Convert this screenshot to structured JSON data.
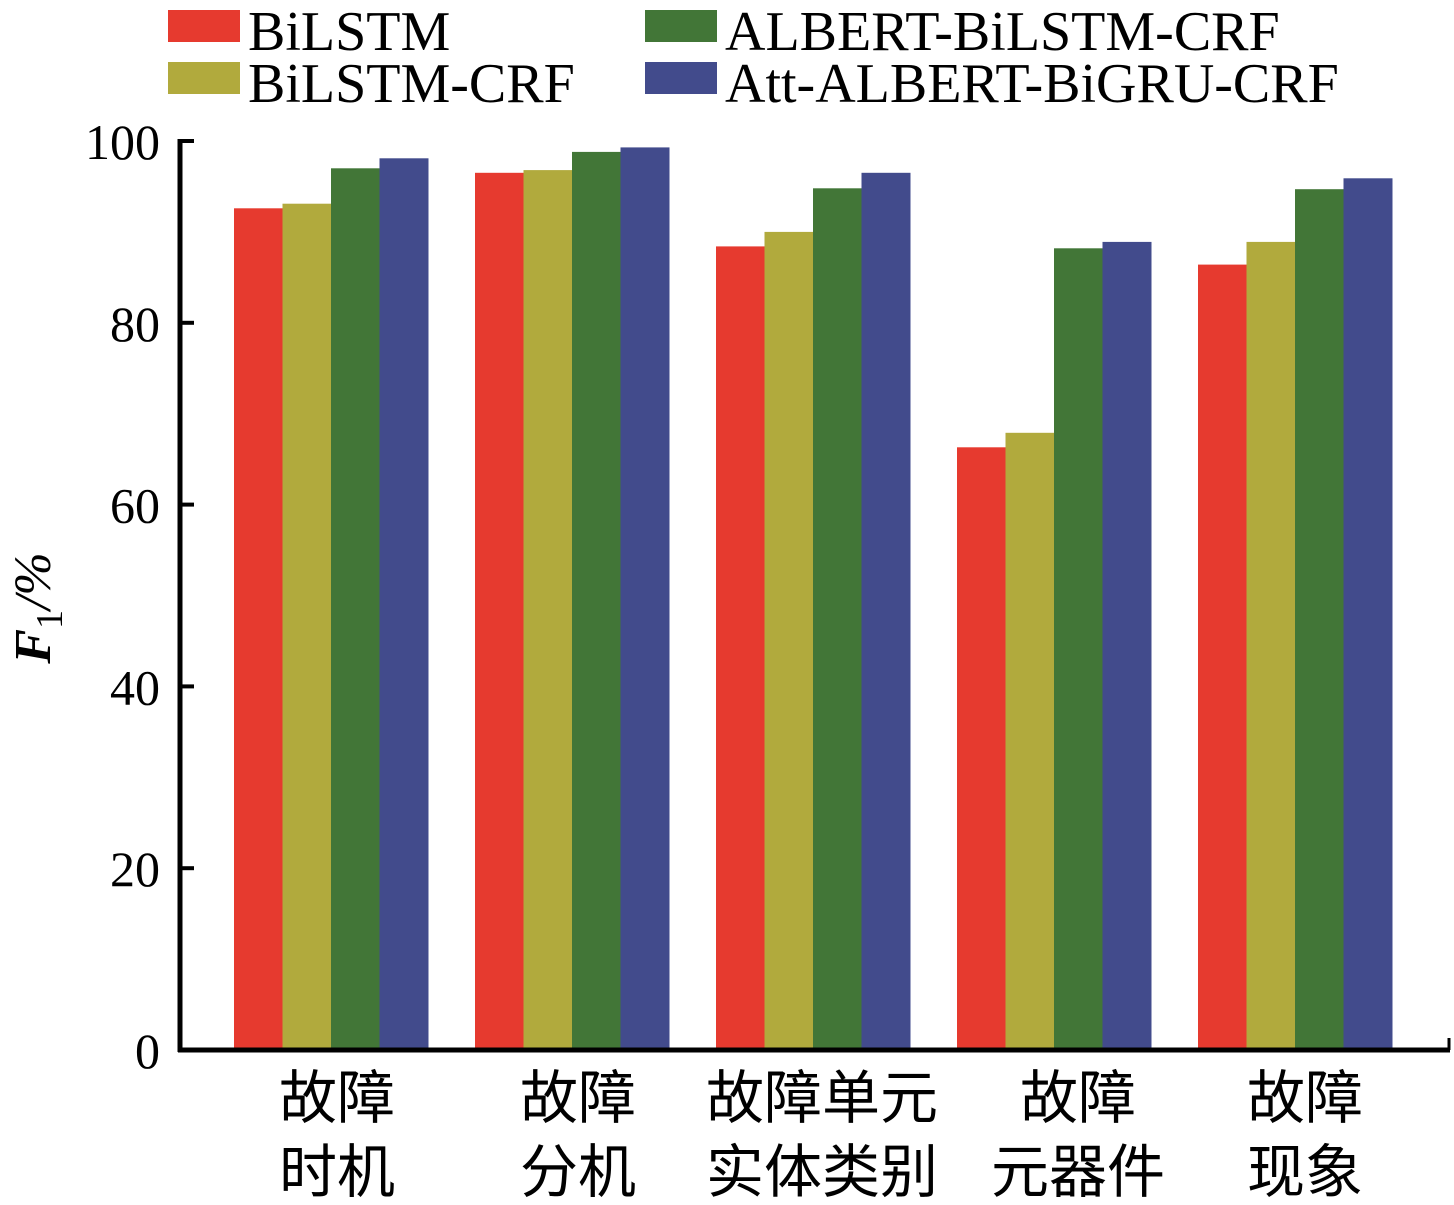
{
  "chart_data": {
    "type": "bar",
    "title": "",
    "xlabel": "",
    "ylabel": {
      "main": "F",
      "subscript": "1",
      "unit": "/%"
    },
    "ylim": [
      0,
      100
    ],
    "yticks": [
      0,
      20,
      40,
      60,
      80,
      100
    ],
    "grid": false,
    "legend_position": "top",
    "categories": [
      [
        "故障",
        "时机"
      ],
      [
        "故障",
        "分机"
      ],
      [
        "故障单元",
        "实体类别"
      ],
      [
        "故障",
        "元器件"
      ],
      [
        "故障",
        "现象"
      ]
    ],
    "series": [
      {
        "name": "BiLSTM",
        "color": "#e63a2f",
        "values": [
          92.6,
          96.5,
          88.4,
          66.3,
          86.4
        ]
      },
      {
        "name": "BiLSTM-CRF",
        "color": "#b1aa3d",
        "values": [
          93.1,
          96.8,
          90.0,
          67.9,
          88.9
        ]
      },
      {
        "name": "ALBERT-BiLSTM-CRF",
        "color": "#427637",
        "values": [
          97.0,
          98.8,
          94.8,
          88.2,
          94.7
        ]
      },
      {
        "name": "Att-ALBERT-BiGRU-CRF",
        "color": "#424b8c",
        "values": [
          98.1,
          99.3,
          96.5,
          88.9,
          95.9
        ]
      }
    ]
  }
}
